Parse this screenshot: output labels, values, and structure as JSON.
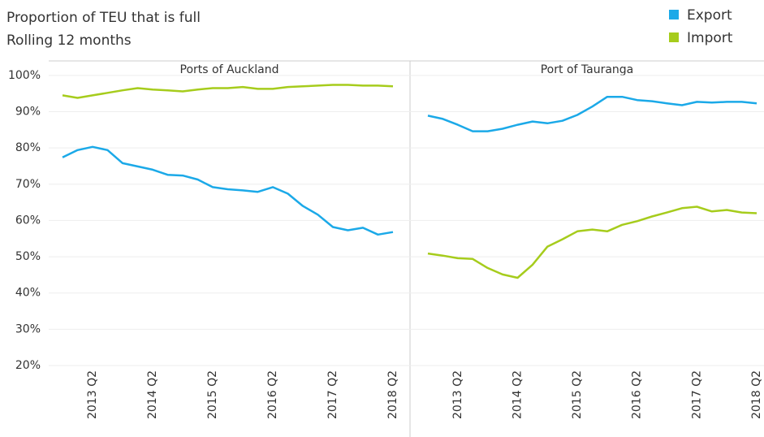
{
  "title": "Proportion of TEU that is full",
  "subtitle": "Rolling 12 months",
  "chart_data": [
    {
      "type": "line",
      "title": "Ports of Auckland",
      "categories": [
        null,
        null,
        "2013 Q2",
        null,
        null,
        null,
        "2014 Q2",
        null,
        null,
        null,
        "2015 Q2",
        null,
        null,
        null,
        "2016 Q2",
        null,
        null,
        null,
        "2017 Q2",
        null,
        null,
        null,
        "2018 Q2"
      ],
      "ylim": [
        20,
        104
      ],
      "yticks": [
        {
          "value": 20,
          "label": "20%"
        },
        {
          "value": 30,
          "label": "30%"
        },
        {
          "value": 40,
          "label": "40%"
        },
        {
          "value": 50,
          "label": "50%"
        },
        {
          "value": 60,
          "label": "60%"
        },
        {
          "value": 70,
          "label": "70%"
        },
        {
          "value": 80,
          "label": "80%"
        },
        {
          "value": 90,
          "label": "90%"
        },
        {
          "value": 100,
          "label": "100%"
        }
      ],
      "grid": true,
      "series": [
        {
          "name": "Export",
          "color": "#1ba9e8",
          "values": [
            77.4,
            79.4,
            80.3,
            79.4,
            75.8,
            74.9,
            74.0,
            72.6,
            72.4,
            71.3,
            69.2,
            68.6,
            68.3,
            67.9,
            69.2,
            67.4,
            64.0,
            61.6,
            58.2,
            57.3,
            58.0,
            56.1,
            56.8
          ]
        },
        {
          "name": "Import",
          "color": "#a6cc1c",
          "values": [
            94.5,
            93.8,
            94.5,
            95.2,
            95.9,
            96.5,
            96.1,
            95.9,
            95.6,
            96.1,
            96.5,
            96.5,
            96.8,
            96.3,
            96.3,
            96.8,
            97.0,
            97.2,
            97.4,
            97.4,
            97.2,
            97.2,
            97.0
          ]
        }
      ]
    },
    {
      "type": "line",
      "title": "Port of Tauranga",
      "categories": [
        null,
        null,
        "2013 Q2",
        null,
        null,
        null,
        "2014 Q2",
        null,
        null,
        null,
        "2015 Q2",
        null,
        null,
        null,
        "2016 Q2",
        null,
        null,
        null,
        "2017 Q2",
        null,
        null,
        null,
        "2018 Q2"
      ],
      "ylim": [
        20,
        104
      ],
      "grid": true,
      "series": [
        {
          "name": "Export",
          "color": "#1ba9e8",
          "values": [
            88.9,
            88.0,
            86.4,
            84.6,
            84.6,
            85.3,
            86.4,
            87.3,
            86.8,
            87.5,
            89.1,
            91.4,
            94.1,
            94.1,
            93.2,
            92.9,
            92.3,
            91.8,
            92.7,
            92.5,
            92.7,
            92.7,
            92.3
          ]
        },
        {
          "name": "Import",
          "color": "#a6cc1c",
          "values": [
            50.9,
            50.3,
            49.6,
            49.4,
            46.9,
            45.1,
            44.2,
            47.8,
            52.8,
            54.8,
            57.0,
            57.5,
            57.0,
            58.8,
            59.8,
            61.1,
            62.2,
            63.4,
            63.8,
            62.5,
            62.9,
            62.2,
            62.0
          ]
        }
      ]
    }
  ]
}
